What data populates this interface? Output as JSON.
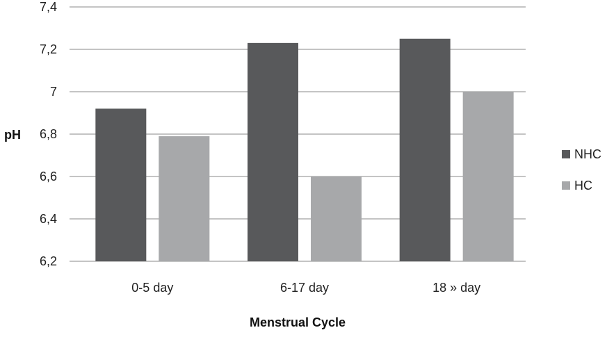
{
  "chart_data": {
    "type": "bar",
    "categories": [
      "0-5 day",
      "6-17 day",
      "18 » day"
    ],
    "series": [
      {
        "name": "NHC",
        "values": [
          6.92,
          7.23,
          7.25
        ],
        "color": "#58595b"
      },
      {
        "name": "HC",
        "values": [
          6.79,
          6.6,
          7.0
        ],
        "color": "#a7a8aa"
      }
    ],
    "xlabel": "Menstrual Cycle",
    "ylabel": "pH",
    "ylim": [
      6.2,
      7.4
    ],
    "yticks": [
      "6,2",
      "6,4",
      "6,6",
      "6,8",
      "7",
      "7,2",
      "7,4"
    ],
    "ytick_values": [
      6.2,
      6.4,
      6.6,
      6.8,
      7.0,
      7.2,
      7.4
    ],
    "grid": true,
    "legend_position": "right"
  }
}
